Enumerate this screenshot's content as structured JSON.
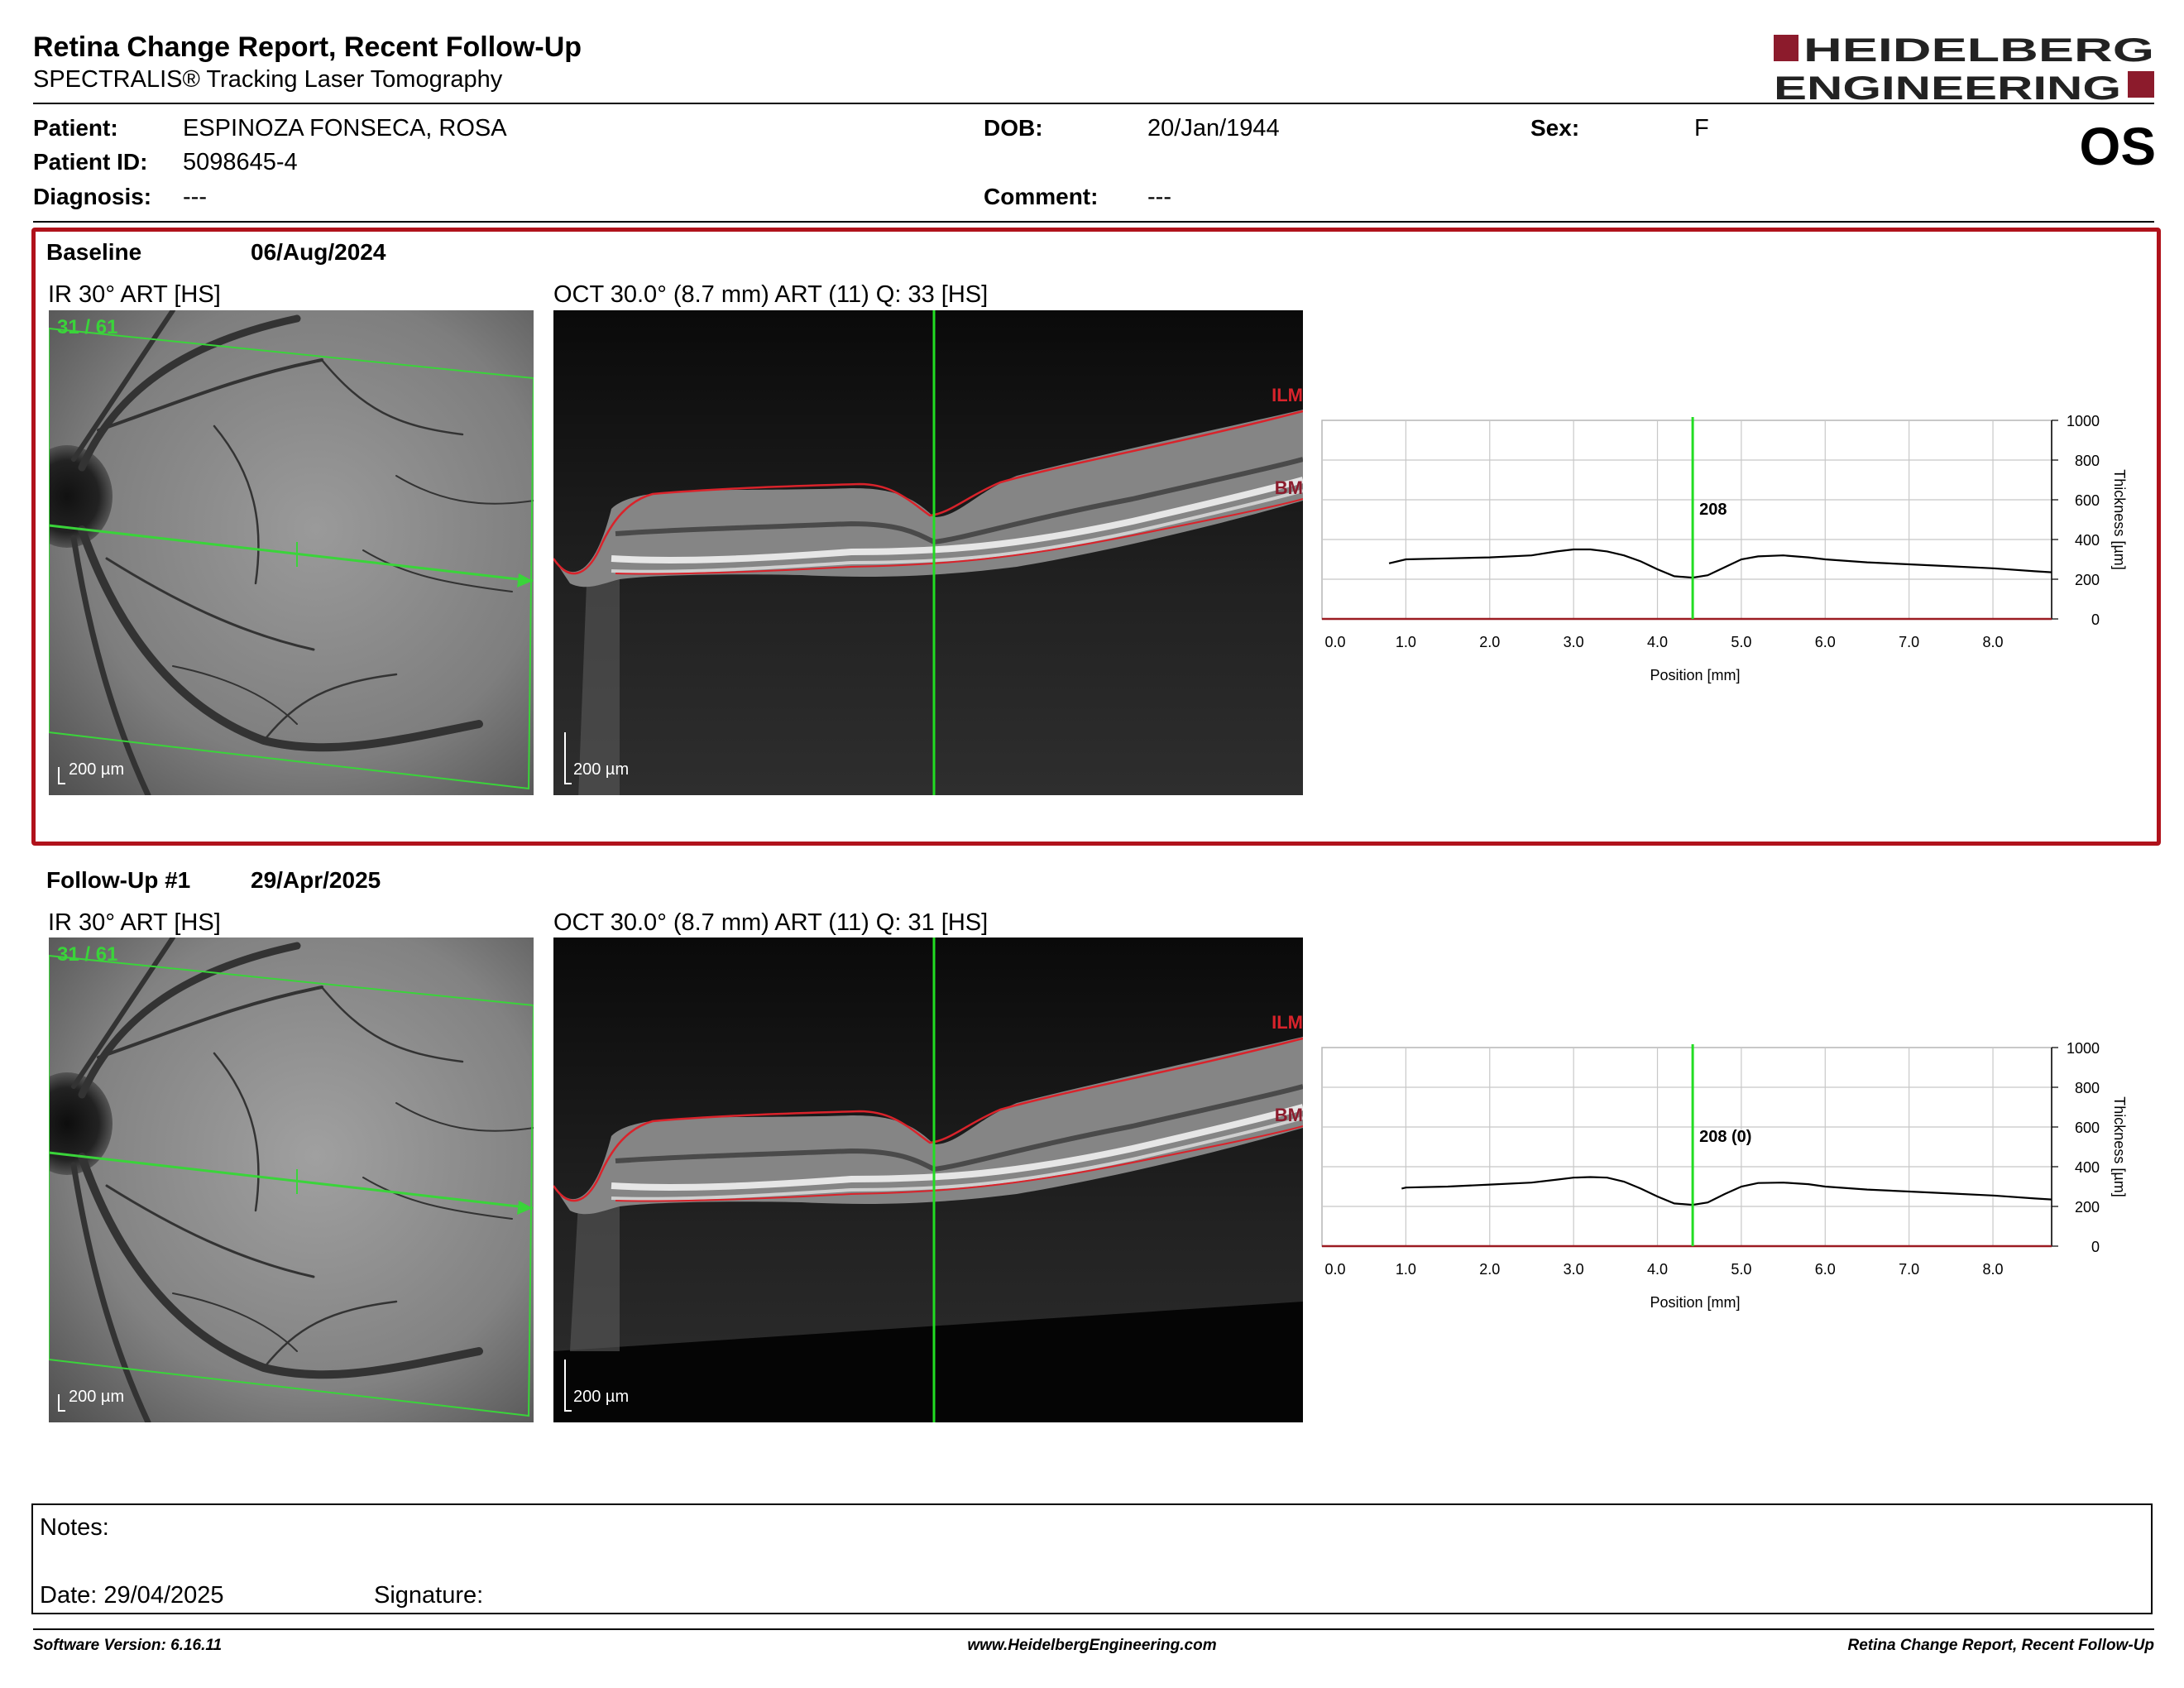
{
  "report": {
    "title": "Retina Change Report, Recent Follow-Up",
    "subtitle": "SPECTRALIS® Tracking Laser Tomography",
    "eye": "OS"
  },
  "brand": {
    "logo_line1": "HEIDELBERG",
    "logo_line2": "ENGINEERING",
    "accent_color": "#8c1b2c"
  },
  "patient": {
    "patient_label": "Patient:",
    "name": "ESPINOZA FONSECA, ROSA",
    "id_label": "Patient ID:",
    "id": "5098645-4",
    "diagnosis_label": "Diagnosis:",
    "diagnosis": "---",
    "dob_label": "DOB:",
    "dob": "20/Jan/1944",
    "comment_label": "Comment:",
    "comment": "---",
    "sex_label": "Sex:",
    "sex": "F"
  },
  "exams": [
    {
      "label": "Baseline",
      "date": "06/Aug/2024",
      "ir_title": "IR 30° ART [HS]",
      "oct_title": "OCT 30.0° (8.7 mm) ART (11) Q: 33 [HS]",
      "scan_index": "31 / 61",
      "scale_bar": "200 µm",
      "layer_top": "ILM",
      "layer_bottom": "BM",
      "marker_value": "208"
    },
    {
      "label": "Follow-Up #1",
      "date": "29/Apr/2025",
      "ir_title": "IR 30° ART [HS]",
      "oct_title": "OCT 30.0° (8.7 mm) ART (11) Q: 31 [HS]",
      "scan_index": "31 / 61",
      "scale_bar": "200 µm",
      "layer_top": "ILM",
      "layer_bottom": "BM",
      "marker_value": "208 (0)"
    }
  ],
  "chart_data": [
    {
      "type": "line",
      "xlabel": "Position [mm]",
      "ylabel": "Thickness [µm]",
      "xlim": [
        0,
        8.7
      ],
      "ylim": [
        0,
        1000
      ],
      "x_ticks": [
        "0.0",
        "1.0",
        "2.0",
        "3.0",
        "4.0",
        "5.0",
        "6.0",
        "7.0",
        "8.0"
      ],
      "y_ticks": [
        "0",
        "200",
        "400",
        "600",
        "800",
        "1000"
      ],
      "grid": true,
      "marker_x": 4.42,
      "marker_label": "208",
      "series": [
        {
          "x": [
            0.8,
            1.0,
            1.5,
            2.0,
            2.5,
            2.8,
            3.0,
            3.2,
            3.4,
            3.6,
            3.8,
            4.0,
            4.2,
            4.42,
            4.6,
            4.8,
            5.0,
            5.2,
            5.5,
            5.8,
            6.0,
            6.5,
            7.0,
            7.5,
            8.0,
            8.5,
            8.7
          ],
          "y": [
            280,
            300,
            305,
            310,
            320,
            340,
            350,
            350,
            340,
            320,
            290,
            250,
            215,
            208,
            220,
            260,
            300,
            315,
            320,
            310,
            300,
            285,
            275,
            265,
            255,
            240,
            235
          ]
        }
      ]
    },
    {
      "type": "line",
      "xlabel": "Position [mm]",
      "ylabel": "Thickness [µm]",
      "xlim": [
        0,
        8.7
      ],
      "ylim": [
        0,
        1000
      ],
      "x_ticks": [
        "0.0",
        "1.0",
        "2.0",
        "3.0",
        "4.0",
        "5.0",
        "6.0",
        "7.0",
        "8.0"
      ],
      "y_ticks": [
        "0",
        "200",
        "400",
        "600",
        "800",
        "1000"
      ],
      "grid": true,
      "marker_x": 4.42,
      "marker_label": "208 (0)",
      "series": [
        {
          "x": [
            0.95,
            1.0,
            1.5,
            2.0,
            2.5,
            2.8,
            3.0,
            3.2,
            3.4,
            3.6,
            3.8,
            4.0,
            4.2,
            4.42,
            4.6,
            4.8,
            5.0,
            5.2,
            5.5,
            5.8,
            6.0,
            6.5,
            7.0,
            7.5,
            8.0,
            8.5,
            8.7
          ],
          "y": [
            290,
            295,
            300,
            310,
            320,
            335,
            345,
            348,
            345,
            325,
            290,
            250,
            215,
            208,
            220,
            262,
            300,
            318,
            320,
            312,
            300,
            285,
            275,
            265,
            255,
            240,
            235
          ]
        }
      ]
    }
  ],
  "notes": {
    "notes_label": "Notes:",
    "date_label": "Date: 29/04/2025",
    "signature_label": "Signature:"
  },
  "footer": {
    "software": "Software Version: 6.16.11",
    "website": "www.HeidelbergEngineering.com",
    "report_name": "Retina Change Report, Recent Follow-Up"
  }
}
